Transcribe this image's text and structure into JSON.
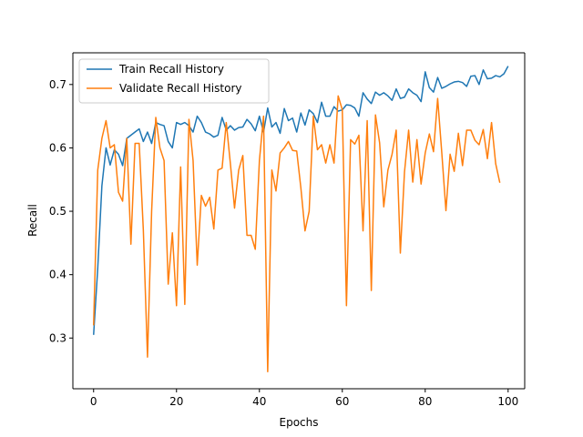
{
  "chart_data": {
    "type": "line",
    "title": "",
    "xlabel": "Epochs",
    "ylabel": "Recall",
    "xlim": [
      -5,
      104
    ],
    "ylim": [
      0.22,
      0.75
    ],
    "xticks": [
      0,
      20,
      40,
      60,
      80,
      100
    ],
    "yticks": [
      0.3,
      0.4,
      0.5,
      0.6,
      0.7
    ],
    "grid": false,
    "legend_position": "top-left",
    "series": [
      {
        "name": "Train Recall History",
        "color": "#1f77b4",
        "values": [
          0.305,
          0.41,
          0.54,
          0.6,
          0.573,
          0.597,
          0.59,
          0.572,
          0.615,
          0.62,
          0.625,
          0.63,
          0.61,
          0.625,
          0.607,
          0.64,
          0.637,
          0.635,
          0.61,
          0.6,
          0.64,
          0.637,
          0.64,
          0.635,
          0.625,
          0.65,
          0.64,
          0.625,
          0.622,
          0.617,
          0.62,
          0.648,
          0.628,
          0.635,
          0.628,
          0.632,
          0.633,
          0.645,
          0.638,
          0.627,
          0.65,
          0.625,
          0.663,
          0.633,
          0.64,
          0.623,
          0.662,
          0.643,
          0.647,
          0.625,
          0.655,
          0.636,
          0.66,
          0.654,
          0.64,
          0.672,
          0.65,
          0.65,
          0.665,
          0.658,
          0.66,
          0.668,
          0.667,
          0.663,
          0.65,
          0.687,
          0.677,
          0.67,
          0.688,
          0.683,
          0.687,
          0.682,
          0.675,
          0.693,
          0.678,
          0.68,
          0.693,
          0.687,
          0.683,
          0.673,
          0.72,
          0.695,
          0.688,
          0.711,
          0.694,
          0.697,
          0.701,
          0.704,
          0.705,
          0.703,
          0.697,
          0.713,
          0.714,
          0.7,
          0.723,
          0.709,
          0.71,
          0.714,
          0.712,
          0.717,
          0.729
        ]
      },
      {
        "name": "Validate Recall History",
        "color": "#ff7f0e",
        "values": [
          0.32,
          0.565,
          0.615,
          0.643,
          0.6,
          0.605,
          0.53,
          0.516,
          0.615,
          0.448,
          0.607,
          0.607,
          0.47,
          0.27,
          0.5,
          0.648,
          0.6,
          0.58,
          0.385,
          0.466,
          0.351,
          0.57,
          0.353,
          0.645,
          0.58,
          0.415,
          0.525,
          0.508,
          0.522,
          0.472,
          0.565,
          0.568,
          0.64,
          0.575,
          0.505,
          0.565,
          0.588,
          0.462,
          0.462,
          0.44,
          0.58,
          0.65,
          0.247,
          0.565,
          0.532,
          0.592,
          0.6,
          0.61,
          0.596,
          0.595,
          0.537,
          0.469,
          0.5,
          0.65,
          0.597,
          0.605,
          0.576,
          0.605,
          0.576,
          0.682,
          0.66,
          0.351,
          0.613,
          0.606,
          0.62,
          0.469,
          0.643,
          0.375,
          0.652,
          0.608,
          0.507,
          0.565,
          0.59,
          0.628,
          0.434,
          0.562,
          0.628,
          0.546,
          0.613,
          0.543,
          0.592,
          0.622,
          0.594,
          0.678,
          0.592,
          0.501,
          0.59,
          0.563,
          0.623,
          0.572,
          0.628,
          0.628,
          0.612,
          0.605,
          0.629,
          0.583,
          0.64,
          0.575,
          0.545
        ]
      }
    ]
  }
}
